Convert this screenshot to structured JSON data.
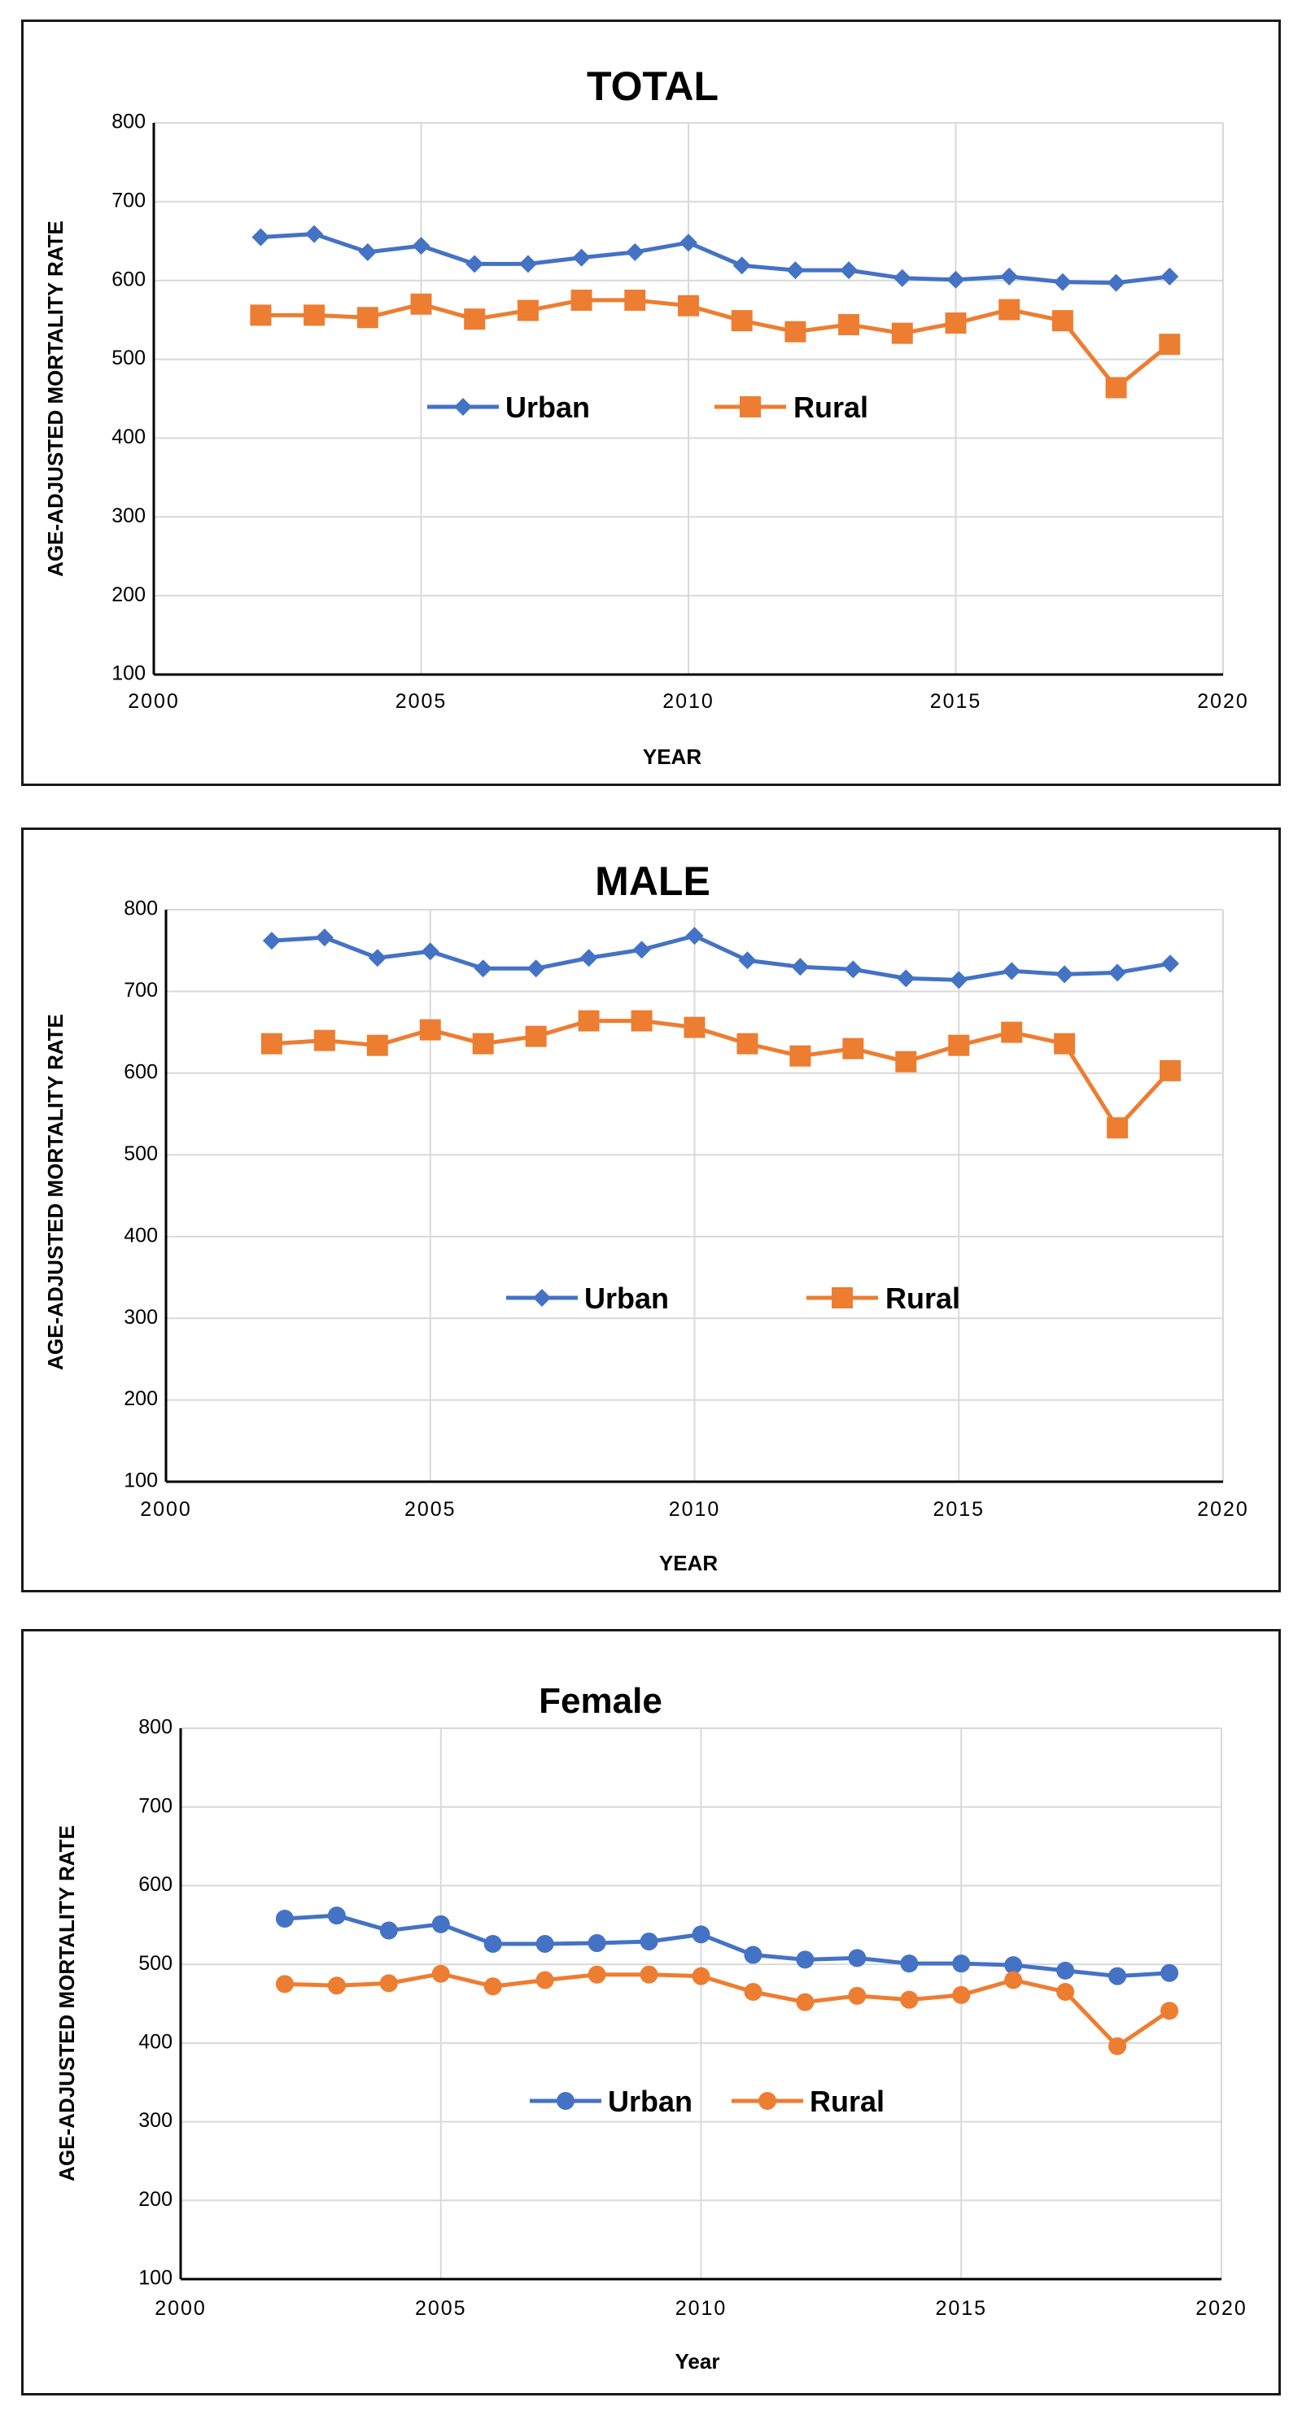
{
  "colors": {
    "urban": "#4472C4",
    "rural": "#ED7D31"
  },
  "chart_data": [
    {
      "type": "line",
      "title": "TOTAL",
      "xlabel": "YEAR",
      "ylabel": "AGE-ADJUSTED MORTALITY RATE",
      "xlim": [
        2000,
        2020
      ],
      "ylim": [
        100,
        800
      ],
      "xticks": [
        "2000",
        "2005",
        "2010",
        "2015",
        "2020"
      ],
      "yticks": [
        "100",
        "200",
        "300",
        "400",
        "500",
        "600",
        "700",
        "800"
      ],
      "x": [
        2002,
        2003,
        2004,
        2005,
        2006,
        2007,
        2008,
        2009,
        2010,
        2011,
        2012,
        2013,
        2014,
        2015,
        2016,
        2017,
        2018,
        2019
      ],
      "series": [
        {
          "name": "Urban",
          "marker": "diamond",
          "values": [
            655,
            659,
            636,
            644,
            621,
            621,
            629,
            636,
            648,
            619,
            613,
            613,
            603,
            601,
            605,
            598,
            597,
            605
          ]
        },
        {
          "name": "Rural",
          "marker": "square",
          "values": [
            556,
            556,
            553,
            570,
            551,
            562,
            575,
            575,
            568,
            549,
            535,
            544,
            533,
            546,
            563,
            549,
            464,
            519
          ]
        }
      ]
    },
    {
      "type": "line",
      "title": "MALE",
      "xlabel": "YEAR",
      "ylabel": "AGE-ADJUSTED MORTALITY RATE",
      "xlim": [
        2000,
        2020
      ],
      "ylim": [
        100,
        800
      ],
      "xticks": [
        "2000",
        "2005",
        "2010",
        "2015",
        "2020"
      ],
      "yticks": [
        "100",
        "200",
        "300",
        "400",
        "500",
        "600",
        "700",
        "800"
      ],
      "x": [
        2002,
        2003,
        2004,
        2005,
        2006,
        2007,
        2008,
        2009,
        2010,
        2011,
        2012,
        2013,
        2014,
        2015,
        2016,
        2017,
        2018,
        2019
      ],
      "series": [
        {
          "name": "Urban",
          "marker": "diamond",
          "values": [
            762,
            766,
            741,
            749,
            728,
            728,
            741,
            751,
            768,
            738,
            730,
            727,
            716,
            714,
            725,
            721,
            723,
            734
          ]
        },
        {
          "name": "Rural",
          "marker": "square",
          "values": [
            636,
            640,
            634,
            653,
            636,
            645,
            664,
            664,
            656,
            636,
            621,
            630,
            614,
            634,
            650,
            636,
            533,
            603
          ]
        }
      ]
    },
    {
      "type": "line",
      "title": "Female",
      "xlabel": "Year",
      "ylabel": "AGE-ADJUSTED MORTALITY RATE",
      "xlim": [
        2000,
        2020
      ],
      "ylim": [
        100,
        800
      ],
      "xticks": [
        "2000",
        "2005",
        "2010",
        "2015",
        "2020"
      ],
      "yticks": [
        "100",
        "200",
        "300",
        "400",
        "500",
        "600",
        "700",
        "800"
      ],
      "x": [
        2002,
        2003,
        2004,
        2005,
        2006,
        2007,
        2008,
        2009,
        2010,
        2011,
        2012,
        2013,
        2014,
        2015,
        2016,
        2017,
        2018,
        2019
      ],
      "series": [
        {
          "name": "Urban",
          "marker": "circle",
          "values": [
            558,
            562,
            543,
            551,
            526,
            526,
            527,
            529,
            538,
            512,
            506,
            508,
            501,
            501,
            499,
            492,
            485,
            489
          ]
        },
        {
          "name": "Rural",
          "marker": "circle",
          "values": [
            475,
            473,
            476,
            488,
            472,
            480,
            487,
            487,
            485,
            465,
            452,
            460,
            455,
            461,
            480,
            465,
            396,
            441
          ]
        }
      ]
    }
  ]
}
